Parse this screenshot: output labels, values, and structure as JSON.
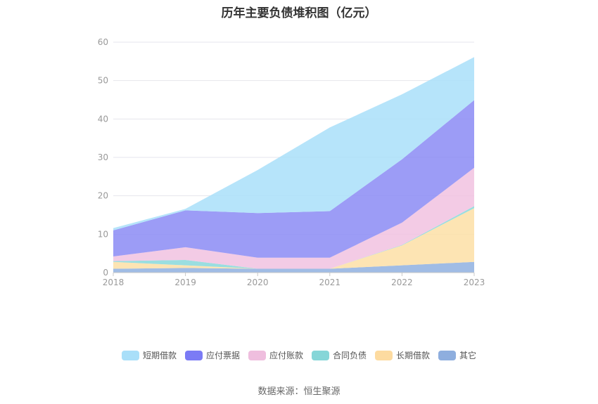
{
  "source_text": "数据来源：恒生聚源",
  "chart_data": {
    "type": "area",
    "stacked": true,
    "title": "历年主要负债堆积图（亿元）",
    "xlabel": "",
    "ylabel": "",
    "x": [
      "2018",
      "2019",
      "2020",
      "2021",
      "2022",
      "2023"
    ],
    "ylim": [
      0,
      60
    ],
    "yticks": [
      0,
      10,
      20,
      30,
      40,
      50,
      60
    ],
    "grid": true,
    "legend_position": "bottom",
    "series": [
      {
        "name": "其它",
        "color": "#8fb0e0",
        "values": [
          1.0,
          1.2,
          1.0,
          1.0,
          1.9,
          2.8
        ]
      },
      {
        "name": "长期借款",
        "color": "#fddfa6",
        "values": [
          1.8,
          0.7,
          0,
          0,
          5.2,
          14.0
        ]
      },
      {
        "name": "合同负债",
        "color": "#88d8da",
        "values": [
          0.2,
          1.4,
          0,
          0,
          0.1,
          0.5
        ]
      },
      {
        "name": "应付账款",
        "color": "#f1c2e0",
        "values": [
          1.2,
          3.3,
          2.9,
          2.9,
          5.8,
          10.0
        ]
      },
      {
        "name": "应付票据",
        "color": "#8b8bf4",
        "values": [
          6.8,
          9.6,
          11.6,
          12.1,
          16.5,
          17.6
        ]
      },
      {
        "name": "短期借款",
        "color": "#a9dff9",
        "values": [
          0.6,
          0.4,
          11.2,
          21.8,
          16.9,
          11.2
        ]
      }
    ]
  },
  "legend": [
    {
      "label": "短期借款",
      "color": "#a9dff9"
    },
    {
      "label": "应付票据",
      "color": "#7b7bf5"
    },
    {
      "label": "应付账款",
      "color": "#efbede"
    },
    {
      "label": "合同负债",
      "color": "#86d6d8"
    },
    {
      "label": "长期借款",
      "color": "#fddba0"
    },
    {
      "label": "其它",
      "color": "#8eaede"
    }
  ]
}
